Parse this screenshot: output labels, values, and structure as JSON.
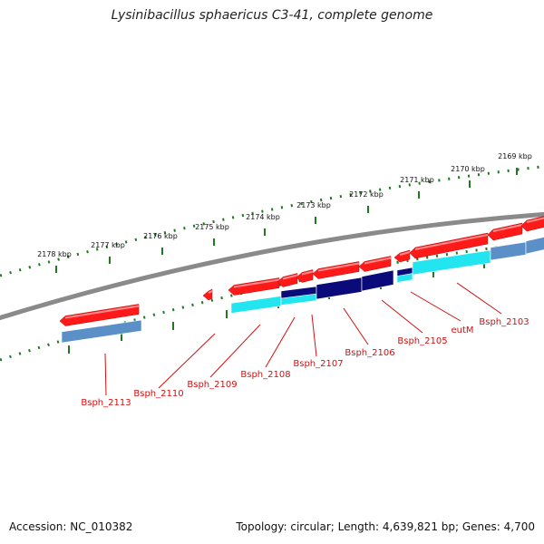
{
  "title": "Lysinibacillus sphaericus C3-41, complete genome",
  "footer": {
    "accession": "Accession: NC_010382",
    "summary": "Topology: circular; Length: 4,639,821 bp; Genes: 4,700"
  },
  "colors": {
    "backbone": "#8a8a8a",
    "cds_red": "#ff1a1a",
    "gene_dark_blue": "#0a0a7a",
    "gene_cyan": "#22e5f0",
    "gene_steel_blue": "#5a8fc8",
    "ruler_green": "#1f7a1f",
    "label_red": "#d21010"
  },
  "ruler_labels": [
    "2169 kbp",
    "2170 kbp",
    "2171 kbp",
    "2172 kbp",
    "2173 kbp",
    "2174 kbp",
    "2175 kbp",
    "2176 kbp",
    "2177 kbp",
    "2178 kbp"
  ],
  "gene_labels": [
    "Bsph_2103",
    "eutM",
    "Bsph_2105",
    "Bsph_2106",
    "Bsph_2107",
    "Bsph_2108",
    "Bsph_2109",
    "Bsph_2110",
    "Bsph_2113"
  ]
}
